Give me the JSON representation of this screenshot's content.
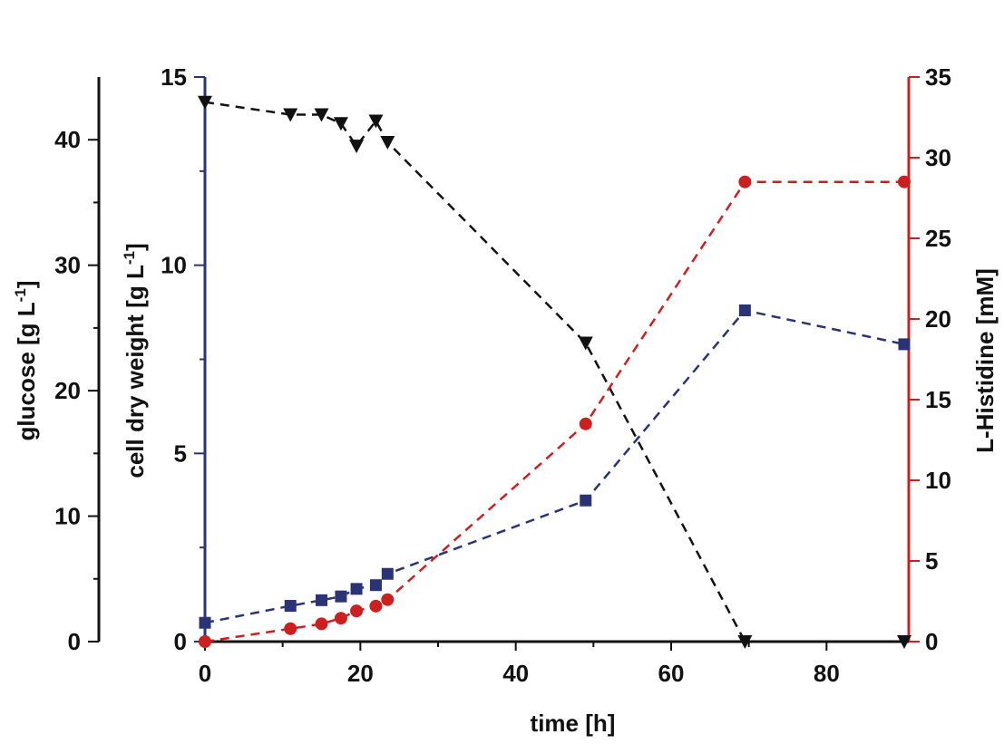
{
  "chart_data": {
    "type": "line",
    "x": [
      0,
      11,
      15,
      17.5,
      19.5,
      22,
      23.5,
      49,
      69.5,
      90
    ],
    "xlabel": "time [h]",
    "xlim": [
      0,
      90
    ],
    "xticks": [
      "0",
      "20",
      "40",
      "60",
      "80"
    ],
    "axes": {
      "glucose": {
        "label": "glucose [g L-1]",
        "label_main": "glucose [g L",
        "label_sup": "-1",
        "label_end": "]",
        "ylim": [
          0,
          45
        ],
        "ticks": [
          "0",
          "10",
          "20",
          "30",
          "40"
        ],
        "color": "#111111",
        "side": "left-outer"
      },
      "cdw": {
        "label": "cell dry weight [g L-1]",
        "label_main": "cell dry weight [g L",
        "label_sup": "-1",
        "label_end": "]",
        "ylim": [
          0,
          15
        ],
        "ticks": [
          "0",
          "5",
          "10",
          "15"
        ],
        "color": "#2a3475",
        "side": "left-inner"
      },
      "histidine": {
        "label": "L-Histidine [mM]",
        "ylim": [
          0,
          35
        ],
        "ticks": [
          "0",
          "5",
          "10",
          "15",
          "20",
          "25",
          "30",
          "35"
        ],
        "color": "#cc2020",
        "side": "right"
      }
    },
    "series": [
      {
        "name": "glucose",
        "axis": "glucose",
        "marker": "triangle-down",
        "color": "#111111",
        "x": [
          0,
          11,
          15,
          17.5,
          19.5,
          22,
          23.5,
          49,
          69.5,
          90
        ],
        "values": [
          43,
          42,
          42,
          41.3,
          39.5,
          41.5,
          39.8,
          23.8,
          0,
          0
        ]
      },
      {
        "name": "cell dry weight",
        "axis": "cdw",
        "marker": "square",
        "color": "#2a3475",
        "x": [
          0,
          11,
          15,
          17.5,
          19.5,
          22,
          23.5,
          49,
          69.5,
          90
        ],
        "values": [
          0.5,
          0.95,
          1.1,
          1.2,
          1.4,
          1.5,
          1.8,
          3.75,
          8.8,
          7.9
        ]
      },
      {
        "name": "L-Histidine",
        "axis": "histidine",
        "marker": "circle",
        "color": "#cc2020",
        "x": [
          0,
          11,
          15,
          17.5,
          19.5,
          22,
          23.5,
          49,
          69.5,
          90
        ],
        "values": [
          0,
          0.8,
          1.1,
          1.45,
          1.9,
          2.2,
          2.6,
          13.5,
          28.5,
          28.5
        ]
      }
    ]
  }
}
